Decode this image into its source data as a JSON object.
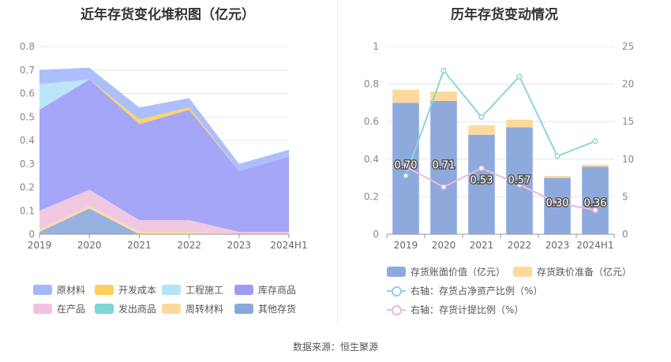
{
  "left_title": "近年存货变化堆积图（亿元）",
  "right_title": "历年存货变动情况",
  "source": "数据来源：恒生聚源",
  "chart_data": [
    {
      "type": "area",
      "stacked": true,
      "categories": [
        "2019",
        "2020",
        "2021",
        "2022",
        "2023",
        "2024H1"
      ],
      "ylim": [
        0,
        0.8
      ],
      "yticks": [
        "0",
        "0.1",
        "0.2",
        "0.3",
        "0.4",
        "0.5",
        "0.6",
        "0.7",
        "0.8"
      ],
      "grid": true,
      "legend_position": "bottom",
      "series": [
        {
          "name": "其他存货",
          "color": "#8aa8dc",
          "values": [
            0.01,
            0.11,
            0.0,
            0.0,
            0.0,
            0.0
          ]
        },
        {
          "name": "周转材料",
          "color": "#fdd99b",
          "values": [
            0.01,
            0.01,
            0.01,
            0.01,
            0.0,
            0.0
          ]
        },
        {
          "name": "发出商品",
          "color": "#7fd6d6",
          "values": [
            0.0,
            0.0,
            0.0,
            0.0,
            0.0,
            0.0
          ]
        },
        {
          "name": "在产品",
          "color": "#f0c2de",
          "values": [
            0.08,
            0.07,
            0.05,
            0.05,
            0.01,
            0.01
          ]
        },
        {
          "name": "库存商品",
          "color": "#9b9cf6",
          "values": [
            0.43,
            0.47,
            0.41,
            0.47,
            0.26,
            0.32
          ]
        },
        {
          "name": "开发成本",
          "color": "#fcd05a",
          "values": [
            0.0,
            0.0,
            0.02,
            0.01,
            0.0,
            0.0
          ]
        },
        {
          "name": "工程施工",
          "color": "#b4e3f8",
          "values": [
            0.11,
            0.0,
            0.0,
            0.0,
            0.0,
            0.0
          ]
        },
        {
          "name": "原材料",
          "color": "#a4b8fb",
          "values": [
            0.06,
            0.05,
            0.05,
            0.04,
            0.03,
            0.03
          ]
        }
      ],
      "legend_order": [
        "原材料",
        "开发成本",
        "工程施工",
        "库存商品",
        "在产品",
        "发出商品",
        "周转材料",
        "其他存货"
      ]
    },
    {
      "type": "bar",
      "stacked": true,
      "categories": [
        "2019",
        "2020",
        "2021",
        "2022",
        "2023",
        "2024H1"
      ],
      "ylim": [
        0,
        1
      ],
      "yticks": [
        "0",
        "0.2",
        "0.4",
        "0.6",
        "0.8",
        "1"
      ],
      "y2lim": [
        0,
        25
      ],
      "y2ticks": [
        "0",
        "5",
        "10",
        "15",
        "20",
        "25"
      ],
      "grid": true,
      "legend_position": "bottom",
      "series": [
        {
          "name": "存货账面价值（亿元）",
          "color": "#8eaadc",
          "values": [
            0.7,
            0.71,
            0.53,
            0.57,
            0.3,
            0.36
          ],
          "labels": [
            "0.70",
            "0.71",
            "0.53",
            "0.57",
            "0.30",
            "0.36"
          ]
        },
        {
          "name": "存货跌价准备（亿元）",
          "color": "#fdd99b",
          "values": [
            0.07,
            0.05,
            0.05,
            0.04,
            0.01,
            0.01
          ]
        }
      ],
      "line_series": [
        {
          "name": "右轴：存货占净资产比例（%）",
          "color": "#8dd4d8",
          "axis": "right",
          "values": [
            7.8,
            21.8,
            15.6,
            21.0,
            10.4,
            12.4
          ]
        },
        {
          "name": "右轴：存货计提比例（%）",
          "color": "#efb8d8",
          "axis": "right",
          "values": [
            9.0,
            6.3,
            8.8,
            6.6,
            4.2,
            3.2
          ]
        }
      ]
    }
  ]
}
